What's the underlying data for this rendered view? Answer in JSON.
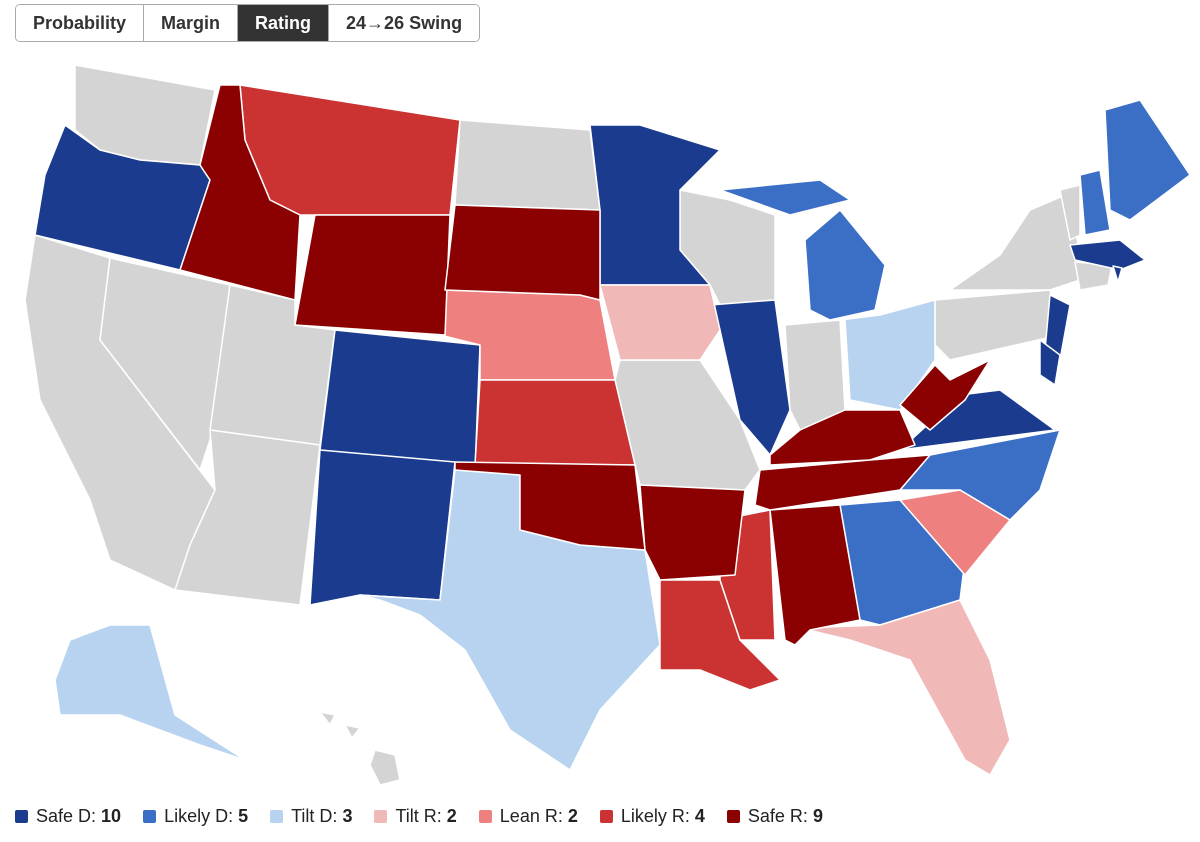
{
  "tabs": [
    "Probability",
    "Margin",
    "Rating",
    "24→26 Swing"
  ],
  "active_tab": 2,
  "legend": {
    "items": [
      {
        "label": "Safe D:",
        "count": 10,
        "color": "#1b3b8f"
      },
      {
        "label": "Likely D:",
        "count": 5,
        "color": "#3b6fc6"
      },
      {
        "label": "Tilt D:",
        "count": 3,
        "color": "#b8d3ef"
      },
      {
        "label": "Tilt R:",
        "count": 2,
        "color": "#f1b8b8"
      },
      {
        "label": "Lean R:",
        "count": 2,
        "color": "#ef8080"
      },
      {
        "label": "Likely R:",
        "count": 4,
        "color": "#cb3232"
      },
      {
        "label": "Safe R:",
        "count": 9,
        "color": "#8b0000"
      }
    ]
  }
}
